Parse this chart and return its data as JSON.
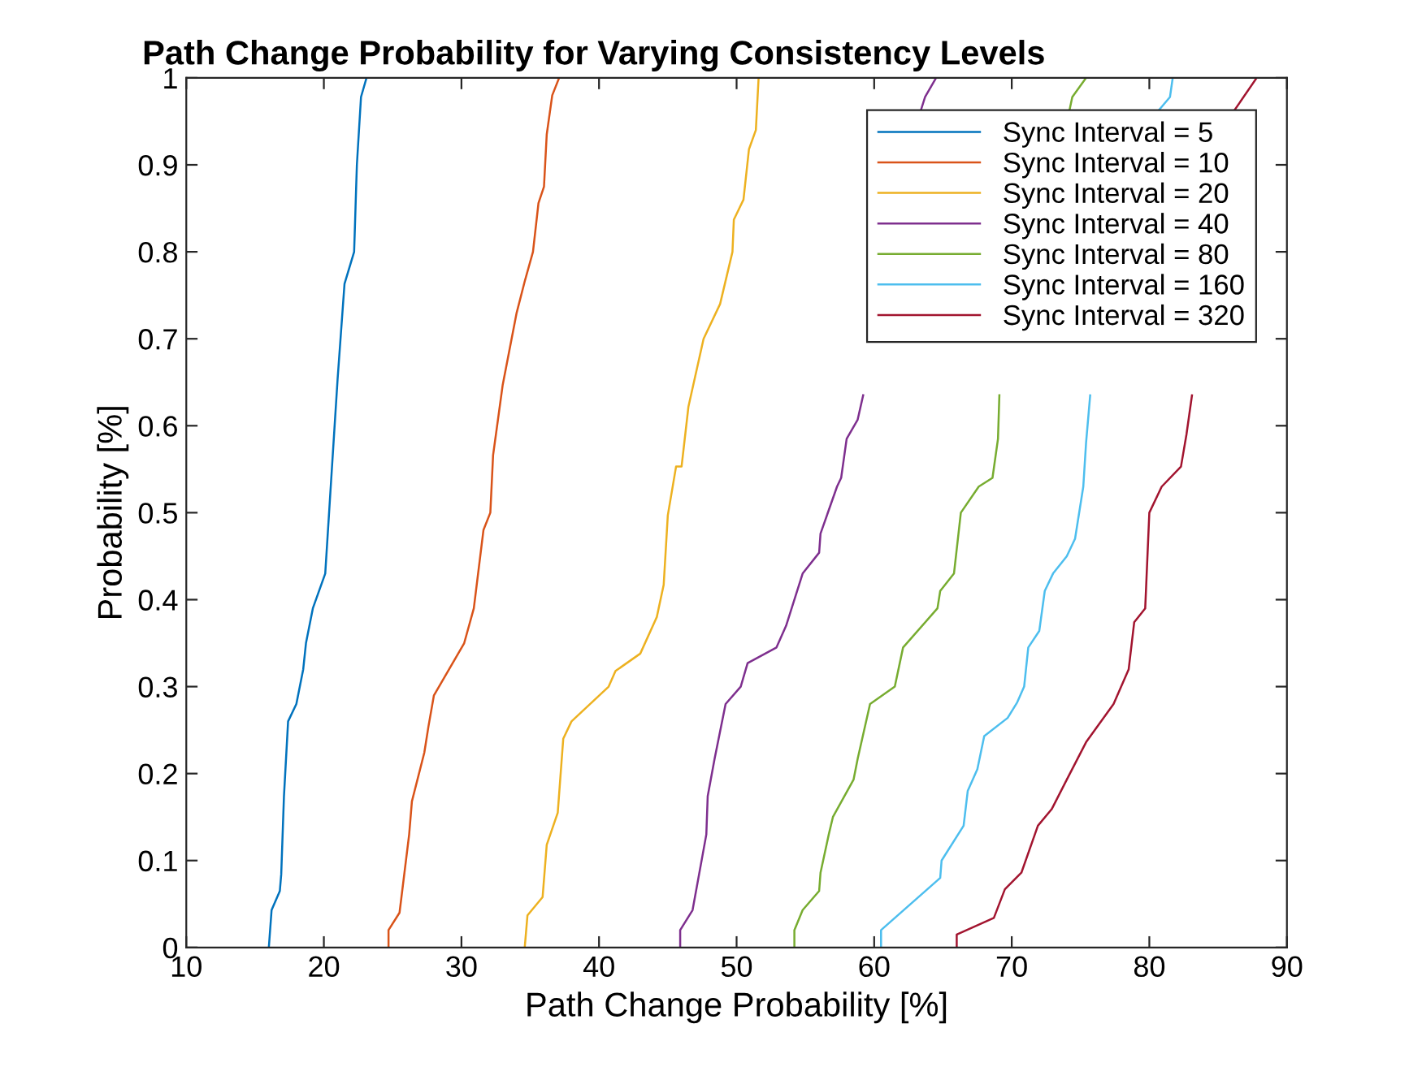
{
  "chart_data": {
    "type": "line",
    "title": "Path Change Probability for Varying Consistency Levels",
    "xlabel": "Path Change Probability [%]",
    "ylabel": "Probability [%]",
    "xlim": [
      10,
      90
    ],
    "xticks": [
      10,
      20,
      30,
      40,
      50,
      60,
      70,
      80,
      90
    ],
    "ylim": [
      0,
      1
    ],
    "yticks": [
      0,
      0.1,
      0.2,
      0.3,
      0.4,
      0.5,
      0.6,
      0.7,
      0.8,
      0.9,
      1
    ],
    "grid": false,
    "legend": "top right",
    "marker": "none",
    "line_style": "solid",
    "series": [
      {
        "name": "Sync Interval = 5",
        "color": "#0072bd",
        "x": [
          16.0,
          16.2,
          16.8,
          16.9,
          17.1,
          17.4,
          18.0,
          18.5,
          18.7,
          19.2,
          20.1,
          20.5,
          21.0,
          21.5,
          22.2,
          22.4,
          22.7,
          23.1
        ],
        "values": [
          0,
          0.043,
          0.065,
          0.084,
          0.174,
          0.26,
          0.28,
          0.32,
          0.35,
          0.39,
          0.43,
          0.53,
          0.654,
          0.763,
          0.8,
          0.9,
          0.978,
          1.0
        ]
      },
      {
        "name": "Sync Interval = 10",
        "color": "#d95319",
        "x": [
          24.7,
          24.7,
          25.5,
          26.2,
          26.4,
          27.3,
          27.6,
          28.0,
          30.2,
          30.9,
          31.6,
          32.1,
          32.3,
          33.0,
          34.0,
          34.6,
          35.2,
          35.6,
          36.0,
          36.2,
          36.6,
          37.1
        ],
        "values": [
          0,
          0.02,
          0.04,
          0.13,
          0.168,
          0.224,
          0.254,
          0.29,
          0.35,
          0.39,
          0.48,
          0.5,
          0.566,
          0.647,
          0.729,
          0.766,
          0.8,
          0.856,
          0.875,
          0.935,
          0.98,
          1.0
        ]
      },
      {
        "name": "Sync Interval = 20",
        "color": "#edb120",
        "x": [
          34.6,
          34.8,
          35.9,
          36.2,
          37.0,
          37.4,
          38.0,
          40.7,
          41.2,
          43.0,
          44.2,
          44.7,
          45.0,
          45.6,
          46.0,
          46.5,
          47.6,
          48.8,
          49.7,
          49.8,
          50.5,
          50.9,
          51.4,
          51.6
        ],
        "values": [
          0,
          0.037,
          0.058,
          0.118,
          0.155,
          0.24,
          0.26,
          0.3,
          0.318,
          0.338,
          0.38,
          0.417,
          0.497,
          0.553,
          0.553,
          0.622,
          0.7,
          0.74,
          0.8,
          0.837,
          0.86,
          0.918,
          0.94,
          1.0
        ]
      },
      {
        "name": "Sync Interval = 40",
        "color": "#7e2f8e",
        "x": [
          45.9,
          45.9,
          46.8,
          47.8,
          47.9,
          48.4,
          49.2,
          50.3,
          50.8,
          52.9,
          53.6,
          54.8,
          56.0,
          56.1,
          57.3,
          57.6,
          58.0,
          58.8,
          59.2,
          null,
          63.4,
          63.7,
          64.5
        ],
        "values": [
          0,
          0.02,
          0.043,
          0.13,
          0.174,
          0.217,
          0.28,
          0.3,
          0.327,
          0.345,
          0.37,
          0.43,
          0.454,
          0.476,
          0.53,
          0.54,
          0.585,
          0.607,
          0.635,
          null,
          0.963,
          0.978,
          1.0
        ]
      },
      {
        "name": "Sync Interval = 80",
        "color": "#77ac30",
        "x": [
          54.2,
          54.2,
          54.8,
          56.0,
          56.1,
          56.7,
          57.0,
          58.5,
          58.8,
          59.7,
          61.5,
          62.1,
          64.6,
          64.8,
          65.8,
          66.3,
          67.6,
          68.6,
          69.0,
          69.1,
          null,
          74.2,
          74.4,
          75.4
        ],
        "values": [
          0,
          0.02,
          0.043,
          0.065,
          0.086,
          0.13,
          0.15,
          0.193,
          0.217,
          0.28,
          0.3,
          0.345,
          0.39,
          0.41,
          0.43,
          0.5,
          0.53,
          0.54,
          0.585,
          0.635,
          null,
          0.963,
          0.978,
          1.0
        ]
      },
      {
        "name": "Sync Interval = 160",
        "color": "#4dbeee",
        "x": [
          60.5,
          60.5,
          64.8,
          64.9,
          66.5,
          66.8,
          67.5,
          68.0,
          69.7,
          70.4,
          70.9,
          71.2,
          72.0,
          72.4,
          73.0,
          74.0,
          74.6,
          75.2,
          75.4,
          75.7,
          null,
          80.7,
          81.5,
          81.7
        ],
        "values": [
          0,
          0.02,
          0.08,
          0.1,
          0.14,
          0.18,
          0.205,
          0.243,
          0.264,
          0.282,
          0.3,
          0.345,
          0.364,
          0.41,
          0.43,
          0.45,
          0.47,
          0.53,
          0.58,
          0.635,
          null,
          0.963,
          0.978,
          1.0
        ]
      },
      {
        "name": "Sync Interval = 320",
        "color": "#a2142f",
        "x": [
          66.0,
          66.0,
          68.7,
          69.5,
          70.7,
          71.9,
          72.9,
          74.0,
          75.4,
          77.4,
          78.5,
          78.9,
          79.7,
          80.0,
          80.9,
          82.3,
          82.7,
          83.1,
          null,
          86.2,
          87.8
        ],
        "values": [
          0,
          0.015,
          0.034,
          0.067,
          0.086,
          0.14,
          0.159,
          0.193,
          0.236,
          0.28,
          0.32,
          0.374,
          0.39,
          0.5,
          0.53,
          0.553,
          0.59,
          0.635,
          null,
          0.963,
          1.0
        ]
      }
    ]
  }
}
